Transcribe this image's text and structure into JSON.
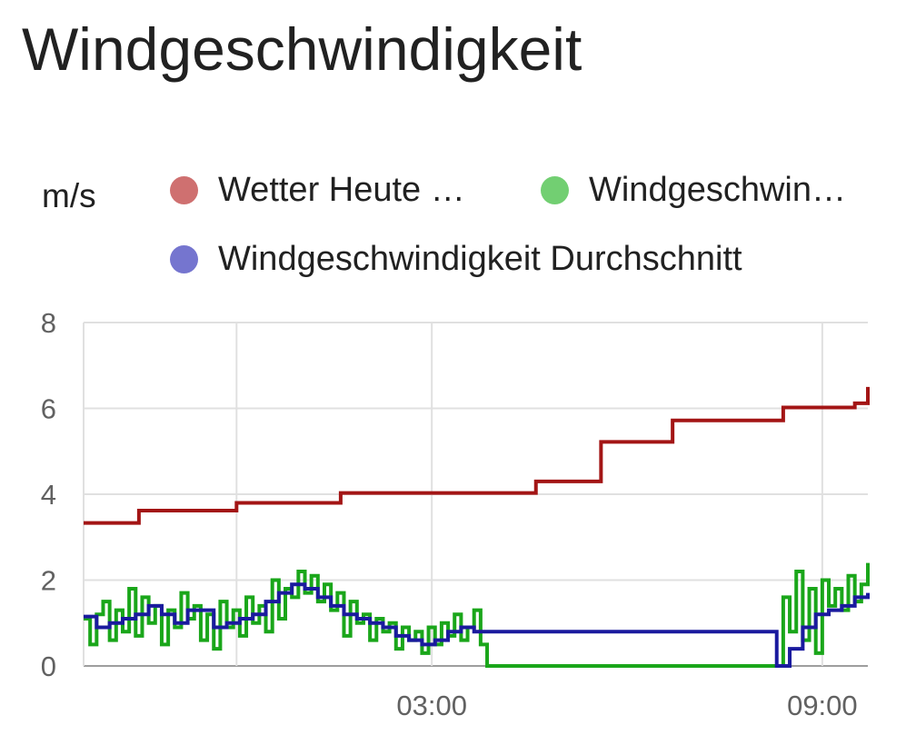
{
  "card": {
    "title": "Windgeschwindigkeit"
  },
  "chart_data": {
    "type": "line",
    "title": "Windgeschwindigkeit",
    "ylabel": "m/s",
    "ylim": [
      0,
      8
    ],
    "y_ticks": [
      {
        "value": 0,
        "label": "0"
      },
      {
        "value": 2,
        "label": "2"
      },
      {
        "value": 4,
        "label": "4"
      },
      {
        "value": 6,
        "label": "6"
      },
      {
        "value": 8,
        "label": "8"
      }
    ],
    "x_ticks": [
      {
        "value": 0,
        "label": ""
      },
      {
        "value": 3,
        "label": "03:00"
      },
      {
        "value": 9,
        "label": "09:00"
      }
    ],
    "xlim": [
      -2.35,
      9.7
    ],
    "grid": true,
    "legend_position": "top",
    "series": [
      {
        "name": "Wetter Heute …",
        "color": "#a31515",
        "legend_color": "#cf7070",
        "step": true,
        "x": [
          -2.35,
          -1.5,
          0.0,
          1.6,
          3.0,
          4.6,
          5.6,
          6.7,
          8.4,
          9.5,
          9.7
        ],
        "y": [
          3.33,
          3.62,
          3.8,
          4.03,
          4.03,
          4.3,
          5.22,
          5.72,
          6.02,
          6.12,
          6.5
        ]
      },
      {
        "name": "Windgeschwin…",
        "color": "#1aa61a",
        "legend_color": "#72cf72",
        "step": true,
        "x": [
          -2.35,
          -2.25,
          -2.15,
          -2.05,
          -1.95,
          -1.85,
          -1.75,
          -1.65,
          -1.55,
          -1.45,
          -1.35,
          -1.25,
          -1.15,
          -1.05,
          -0.95,
          -0.85,
          -0.75,
          -0.65,
          -0.55,
          -0.45,
          -0.35,
          -0.25,
          -0.15,
          -0.05,
          0.05,
          0.15,
          0.25,
          0.35,
          0.45,
          0.55,
          0.65,
          0.75,
          0.85,
          0.95,
          1.05,
          1.15,
          1.25,
          1.35,
          1.45,
          1.55,
          1.65,
          1.75,
          1.85,
          1.95,
          2.05,
          2.15,
          2.25,
          2.35,
          2.45,
          2.55,
          2.65,
          2.75,
          2.85,
          2.95,
          3.05,
          3.15,
          3.25,
          3.35,
          3.45,
          3.55,
          3.65,
          3.75,
          3.85,
          3.95,
          4.05,
          4.15,
          4.25,
          4.35,
          4.5,
          8.3,
          8.4,
          8.5,
          8.6,
          8.7,
          8.8,
          8.9,
          9.0,
          9.1,
          9.2,
          9.3,
          9.4,
          9.5,
          9.6,
          9.7
        ],
        "y": [
          1.1,
          0.5,
          1.2,
          1.5,
          0.6,
          1.3,
          0.8,
          1.8,
          0.7,
          1.6,
          1.0,
          1.4,
          0.5,
          1.3,
          0.9,
          1.7,
          1.1,
          1.4,
          0.6,
          1.2,
          0.4,
          1.5,
          0.9,
          1.3,
          0.7,
          1.6,
          1.0,
          1.4,
          0.8,
          2.0,
          1.1,
          1.8,
          1.6,
          2.2,
          1.7,
          2.1,
          1.5,
          1.9,
          1.3,
          1.7,
          0.7,
          1.5,
          1.0,
          1.2,
          0.6,
          1.1,
          0.8,
          1.0,
          0.4,
          0.9,
          0.6,
          0.8,
          0.3,
          0.9,
          0.5,
          1.0,
          0.7,
          1.2,
          0.6,
          0.9,
          1.3,
          0.5,
          0.0,
          0.0,
          0.0,
          0.0,
          0.0,
          0.0,
          0.0,
          0.0,
          1.6,
          0.8,
          2.2,
          0.6,
          1.8,
          0.3,
          2.0,
          1.4,
          1.8,
          1.3,
          2.1,
          1.5,
          1.9,
          2.4
        ],
        "note_x_units": "hours relative to 00:00 label grid"
      },
      {
        "name": "Windgeschwindigkeit Durchschnitt",
        "color": "#1a1a9e",
        "legend_color": "#7575cf",
        "step": true,
        "x": [
          -2.35,
          -2.15,
          -1.95,
          -1.75,
          -1.55,
          -1.35,
          -1.15,
          -0.95,
          -0.75,
          -0.55,
          -0.35,
          -0.15,
          0.05,
          0.25,
          0.45,
          0.65,
          0.85,
          1.05,
          1.25,
          1.45,
          1.65,
          1.85,
          2.05,
          2.25,
          2.45,
          2.65,
          2.85,
          3.05,
          3.25,
          3.45,
          3.65,
          3.85,
          4.0,
          8.1,
          8.3,
          8.5,
          8.7,
          8.9,
          9.1,
          9.3,
          9.5,
          9.7
        ],
        "y": [
          1.15,
          0.9,
          1.0,
          1.1,
          1.2,
          1.4,
          1.2,
          1.0,
          1.3,
          1.3,
          0.9,
          1.0,
          1.1,
          1.2,
          1.5,
          1.7,
          1.9,
          1.8,
          1.6,
          1.4,
          1.2,
          1.1,
          1.0,
          0.9,
          0.7,
          0.6,
          0.5,
          0.6,
          0.8,
          0.9,
          0.8,
          0.8,
          0.8,
          0.8,
          0.0,
          0.4,
          0.9,
          1.2,
          1.3,
          1.4,
          1.6,
          1.7
        ]
      }
    ]
  }
}
